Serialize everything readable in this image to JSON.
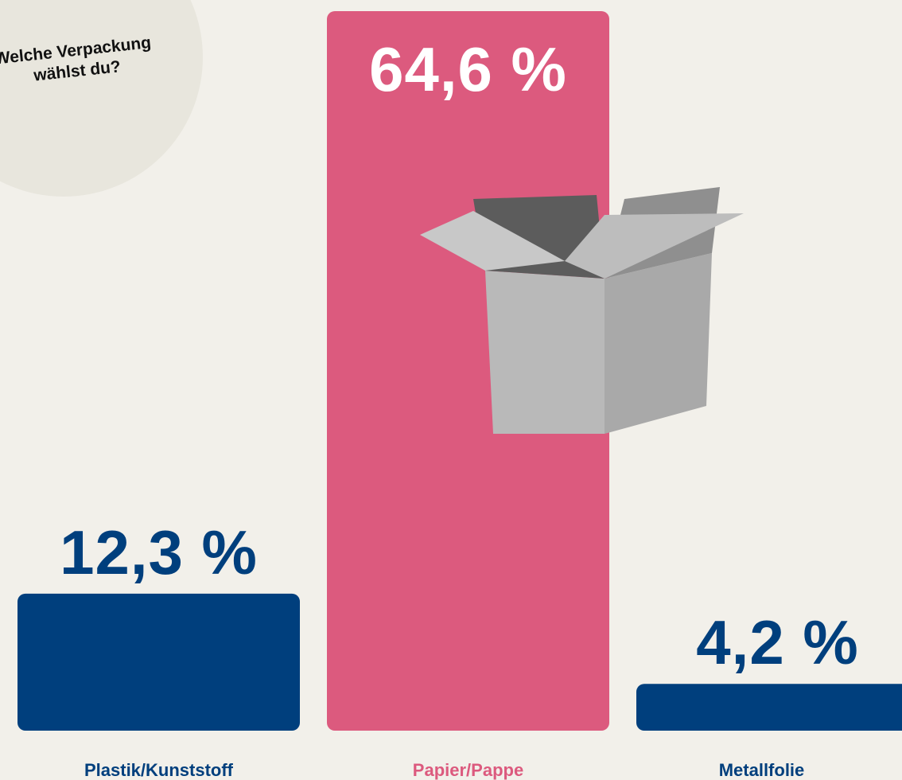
{
  "chart_data": {
    "type": "bar",
    "title": "Welche Verpackung wählst du?",
    "categories": [
      "Plastik/Kunststoff",
      "Papier/Pappe",
      "Metallfolie"
    ],
    "values": [
      12.3,
      64.6,
      4.2
    ],
    "value_labels": [
      "12,3 %",
      "64,6 %",
      "4,2 %"
    ],
    "colors": [
      "#003f7d",
      "#dc5a7e",
      "#003f7d"
    ]
  }
}
